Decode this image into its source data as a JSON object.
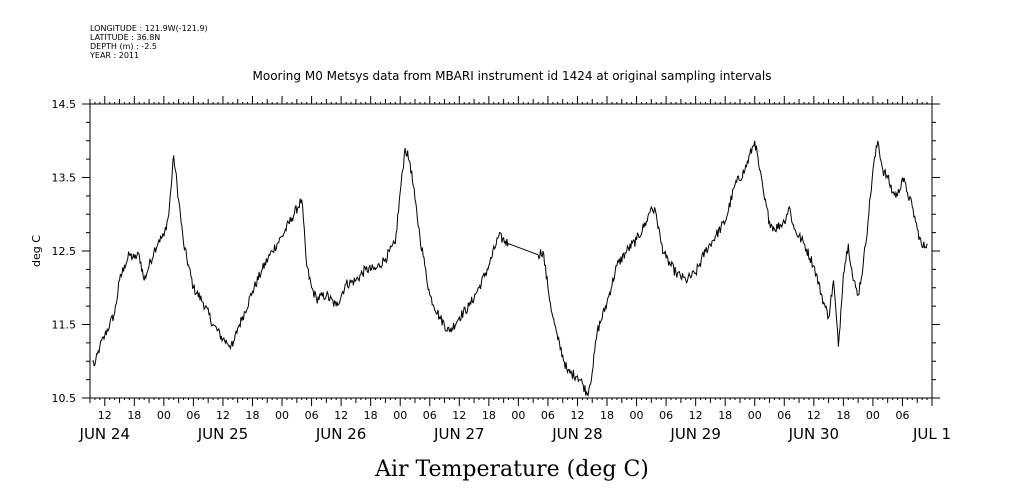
{
  "header": {
    "meta_lines": [
      "LONGITUDE : 121.9W(-121.9)",
      "LATITUDE : 36.8N",
      "DEPTH (m) : -2.5",
      "YEAR : 2011"
    ],
    "title": "Mooring M0 Metsys data from MBARI instrument id 1424 at original sampling intervals"
  },
  "chart_data": {
    "type": "line",
    "title": "Mooring M0 Metsys data from MBARI instrument id 1424 at original sampling intervals",
    "xlabel": "Air Temperature (deg C)",
    "ylabel": "deg C",
    "ylim": [
      10.5,
      14.5
    ],
    "yticks": [
      "10.5",
      "11.5",
      "12.5",
      "13.5",
      "14.5"
    ],
    "x_start": "JUN 24 2011 09:00",
    "x_end": "JUL 1 2011 12:00",
    "hour_ticks": [
      "12",
      "18",
      "00",
      "06",
      "12",
      "18",
      "00",
      "06",
      "12",
      "18",
      "00",
      "06",
      "12",
      "18",
      "00",
      "06",
      "12",
      "18",
      "00",
      "06",
      "12",
      "18",
      "00",
      "06",
      "12",
      "18",
      "00",
      "06"
    ],
    "day_labels": [
      "JUN 24",
      "JUN 25",
      "JUN 26",
      "JUN 27",
      "JUN 28",
      "JUN 29",
      "JUN 30",
      "JUL 1"
    ],
    "grid": false,
    "series": [
      {
        "x": [
          "JUN 24 09:30",
          "JUN 24 10:00",
          "JUN 24 11:00",
          "JUN 24 12:00",
          "JUN 24 13:00",
          "JUN 24 14:00",
          "JUN 24 15:00",
          "JUN 24 16:00",
          "JUN 24 17:00",
          "JUN 24 18:00",
          "JUN 24 19:00",
          "JUN 24 20:00",
          "JUN 24 21:00",
          "JUN 24 22:00",
          "JUN 24 23:00",
          "JUN 25 00:00",
          "JUN 25 01:00",
          "JUN 25 02:00",
          "JUN 25 03:00",
          "JUN 25 04:00",
          "JUN 25 06:00",
          "JUN 25 08:00",
          "JUN 25 10:00",
          "JUN 25 12:00",
          "JUN 25 14:00",
          "JUN 25 15:00",
          "JUN 25 16:00",
          "JUN 25 18:00",
          "JUN 25 20:00",
          "JUN 25 22:00",
          "JUN 26 00:00",
          "JUN 26 02:00",
          "JUN 26 04:00",
          "JUN 26 05:00",
          "JUN 26 06:00",
          "JUN 26 07:00",
          "JUN 26 09:00",
          "JUN 26 11:00",
          "JUN 26 13:00",
          "JUN 26 15:00",
          "JUN 26 17:00",
          "JUN 26 19:00",
          "JUN 26 21:00",
          "JUN 26 23:00",
          "JUN 27 00:00",
          "JUN 27 01:00",
          "JUN 27 02:00",
          "JUN 27 03:00",
          "JUN 27 04:00",
          "JUN 27 05:00",
          "JUN 27 06:00",
          "JUN 27 08:00",
          "JUN 27 10:00",
          "JUN 27 12:00",
          "JUN 27 14:00",
          "JUN 27 16:00",
          "JUN 27 18:00",
          "JUN 27 20:00",
          "JUN 27 22:00",
          "JUN 28 04:00",
          "JUN 28 05:00",
          "JUN 28 06:00",
          "JUN 28 07:00",
          "JUN 28 08:00",
          "JUN 28 10:00",
          "JUN 28 12:00",
          "JUN 28 13:00",
          "JUN 28 14:00",
          "JUN 28 15:00",
          "JUN 28 16:00",
          "JUN 28 18:00",
          "JUN 28 20:00",
          "JUN 28 22:00",
          "JUN 29 00:00",
          "JUN 29 02:00",
          "JUN 29 03:00",
          "JUN 29 04:00",
          "JUN 29 05:00",
          "JUN 29 06:00",
          "JUN 29 08:00",
          "JUN 29 10:00",
          "JUN 29 12:00",
          "JUN 29 14:00",
          "JUN 29 16:00",
          "JUN 29 18:00",
          "JUN 29 20:00",
          "JUN 29 22:00",
          "JUN 30 00:00",
          "JUN 30 01:00",
          "JUN 30 02:00",
          "JUN 30 03:00",
          "JUN 30 04:00",
          "JUN 30 06:00",
          "JUN 30 07:00",
          "JUN 30 08:00",
          "JUN 30 10:00",
          "JUN 30 12:00",
          "JUN 30 14:00",
          "JUN 30 15:00",
          "JUN 30 16:00",
          "JUN 30 17:00",
          "JUN 30 18:00",
          "JUN 30 19:00",
          "JUN 30 20:00",
          "JUN 30 21:00",
          "JUN 30 22:00",
          "JUN 30 23:00",
          "JUL 1 00:00",
          "JUL 1 01:00",
          "JUL 1 02:00",
          "JUL 1 03:00",
          "JUL 1 04:00",
          "JUL 1 05:00",
          "JUL 1 06:00",
          "JUL 1 07:00",
          "JUL 1 08:00",
          "JUL 1 09:00",
          "JUL 1 10:00",
          "JUL 1 11:00"
        ],
        "y": [
          11.0,
          10.95,
          11.2,
          11.35,
          11.5,
          11.65,
          12.1,
          12.3,
          12.45,
          12.4,
          12.45,
          12.1,
          12.3,
          12.5,
          12.65,
          12.7,
          13.0,
          13.8,
          13.2,
          12.6,
          12.0,
          11.8,
          11.5,
          11.3,
          11.2,
          11.45,
          11.6,
          11.95,
          12.25,
          12.5,
          12.7,
          12.95,
          13.2,
          12.3,
          12.0,
          11.85,
          11.9,
          11.75,
          12.05,
          12.1,
          12.25,
          12.25,
          12.4,
          12.6,
          13.3,
          13.9,
          13.7,
          13.2,
          12.7,
          12.3,
          11.9,
          11.6,
          11.4,
          11.6,
          11.75,
          12.0,
          12.3,
          12.7,
          12.6,
          12.45,
          12.5,
          12.0,
          11.6,
          11.3,
          10.85,
          10.8,
          10.7,
          10.55,
          10.85,
          11.4,
          11.8,
          12.3,
          12.5,
          12.65,
          12.9,
          13.1,
          13.0,
          12.6,
          12.4,
          12.2,
          12.1,
          12.2,
          12.5,
          12.7,
          12.9,
          13.4,
          13.6,
          14.0,
          13.6,
          13.2,
          12.9,
          12.8,
          12.9,
          13.1,
          12.8,
          12.6,
          12.3,
          11.8,
          11.6,
          12.1,
          11.2,
          12.2,
          12.6,
          12.1,
          11.9,
          12.3,
          12.9,
          13.6,
          14.0,
          13.6,
          13.5,
          13.3,
          13.25,
          13.5,
          13.3,
          13.1,
          12.8,
          12.55,
          12.6
        ]
      }
    ]
  }
}
